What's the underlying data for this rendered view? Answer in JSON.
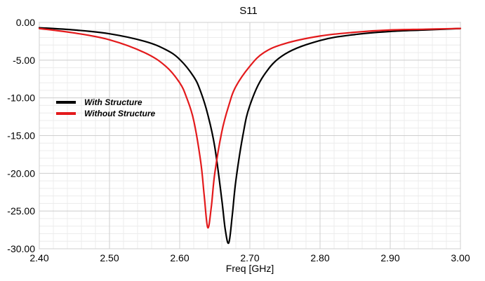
{
  "chart_data": {
    "type": "line",
    "title": "S11",
    "xlabel": "Freq [GHz]",
    "ylabel": "",
    "xlim": [
      2.4,
      3.0
    ],
    "ylim": [
      -30.0,
      0.0
    ],
    "x_ticks": [
      "2.40",
      "2.50",
      "2.60",
      "2.70",
      "2.80",
      "2.90",
      "3.00"
    ],
    "y_ticks": [
      "0.00",
      "-5.00",
      "-10.00",
      "-15.00",
      "-20.00",
      "-25.00",
      "-30.00"
    ],
    "grid": true,
    "legend_position": "left",
    "series": [
      {
        "name": "With Structure",
        "color": "#000000",
        "x": [
          2.4,
          2.45,
          2.5,
          2.55,
          2.58,
          2.6,
          2.62,
          2.63,
          2.64,
          2.65,
          2.66,
          2.665,
          2.67,
          2.675,
          2.68,
          2.69,
          2.7,
          2.72,
          2.75,
          2.8,
          2.85,
          2.9,
          2.95,
          3.0
        ],
        "values": [
          -0.7,
          -1.0,
          -1.5,
          -2.5,
          -3.6,
          -4.9,
          -7.2,
          -9.2,
          -12.2,
          -16.5,
          -23.5,
          -27.5,
          -29.2,
          -25.5,
          -21.0,
          -15.0,
          -11.0,
          -7.0,
          -4.2,
          -2.4,
          -1.6,
          -1.2,
          -1.0,
          -0.8
        ]
      },
      {
        "name": "Without Structure",
        "color": "#e31a1c",
        "x": [
          2.4,
          2.45,
          2.5,
          2.55,
          2.58,
          2.6,
          2.61,
          2.62,
          2.63,
          2.635,
          2.64,
          2.645,
          2.65,
          2.66,
          2.67,
          2.68,
          2.7,
          2.72,
          2.75,
          2.8,
          2.85,
          2.9,
          2.95,
          3.0
        ],
        "values": [
          -0.8,
          -1.4,
          -2.3,
          -4.0,
          -5.8,
          -8.0,
          -10.0,
          -13.0,
          -18.5,
          -23.0,
          -27.2,
          -24.5,
          -20.0,
          -14.5,
          -11.0,
          -8.5,
          -5.8,
          -4.0,
          -2.8,
          -1.8,
          -1.3,
          -1.0,
          -0.9,
          -0.8
        ]
      }
    ]
  }
}
